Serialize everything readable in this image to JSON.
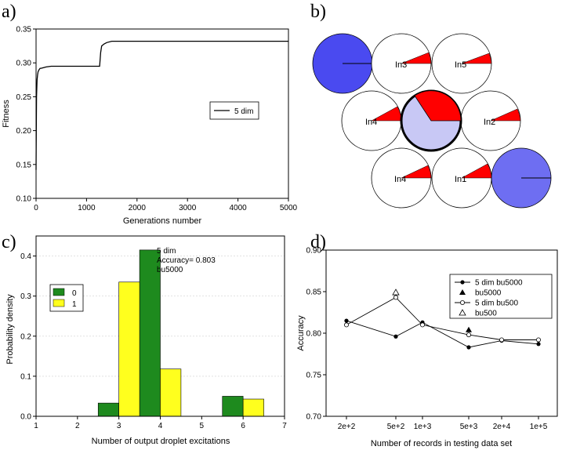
{
  "panel_labels": [
    "a)",
    "b)",
    "c)",
    "d)"
  ],
  "chart_data": [
    {
      "panel": "a",
      "type": "line",
      "xlabel": "Generations number",
      "ylabel": "Fitness",
      "xlim": [
        0,
        5000
      ],
      "ylim": [
        0.1,
        0.35
      ],
      "xticks": [
        0,
        1000,
        2000,
        3000,
        4000,
        5000
      ],
      "yticks": [
        0.1,
        0.15,
        0.2,
        0.25,
        0.3,
        0.35
      ],
      "ytick_labels": [
        "0.10",
        "0.15",
        "0.20",
        "0.25",
        "0.30",
        "0.35"
      ],
      "legend": "5 dim",
      "legend_position": "center-right",
      "series": [
        {
          "name": "5 dim",
          "x": [
            0,
            5,
            10,
            20,
            30,
            40,
            60,
            80,
            100,
            150,
            200,
            300,
            1260,
            1280,
            1300,
            1350,
            1400,
            1500,
            5000
          ],
          "y": [
            0.142,
            0.2,
            0.25,
            0.275,
            0.282,
            0.287,
            0.29,
            0.292,
            0.292,
            0.293,
            0.294,
            0.295,
            0.295,
            0.315,
            0.325,
            0.328,
            0.33,
            0.332,
            0.332
          ]
        }
      ]
    },
    {
      "panel": "c",
      "type": "bar",
      "xlabel": "Number of output droplet excitations",
      "ylabel": "Probability density",
      "xlim": [
        1,
        7
      ],
      "ylim": [
        0,
        0.45
      ],
      "xticks": [
        1,
        2,
        3,
        4,
        5,
        6,
        7
      ],
      "yticks": [
        0.0,
        0.1,
        0.2,
        0.3,
        0.4
      ],
      "ytick_labels": [
        "0.0",
        "0.1",
        "0.2",
        "0.3",
        "0.4"
      ],
      "annotation": [
        "5 dim",
        "Accuracy= 0.803",
        "bu5000"
      ],
      "legend_position": "left",
      "series": [
        {
          "name": "0",
          "color": "#1e8a1e",
          "x": [
            3,
            4,
            6
          ],
          "values": [
            0.033,
            0.415,
            0.05
          ]
        },
        {
          "name": "1",
          "color": "#ffff1e",
          "x": [
            3,
            4,
            6
          ],
          "values": [
            0.335,
            0.118,
            0.043
          ]
        }
      ]
    },
    {
      "panel": "d",
      "type": "line",
      "xlabel": "Number of records in testing data set",
      "ylabel": "Accuracy",
      "categories": [
        "2e+2",
        "5e+2",
        "1e+3",
        "5e+3",
        "2e+4",
        "1e+5"
      ],
      "ylim": [
        0.7,
        0.9
      ],
      "yticks": [
        0.7,
        0.75,
        0.8,
        0.85,
        0.9
      ],
      "ytick_labels": [
        "0.70",
        "0.75",
        "0.80",
        "0.85",
        "0.90"
      ],
      "legend_position": "top-right",
      "series": [
        {
          "name": "5 dim bu5000",
          "marker": "filled-circle",
          "line": true,
          "values": [
            0.815,
            0.796,
            0.813,
            0.783,
            0.791,
            0.787
          ]
        },
        {
          "name": "bu5000",
          "marker": "filled-triangle",
          "line": false,
          "points": [
            {
              "category": "5e+3",
              "value": 0.804
            }
          ]
        },
        {
          "name": "5 dim bu500",
          "marker": "open-circle",
          "line": true,
          "values": [
            0.81,
            0.843,
            0.81,
            0.798,
            0.792,
            0.792
          ]
        },
        {
          "name": "bu500",
          "marker": "open-triangle",
          "line": false,
          "points": [
            {
              "category": "5e+2",
              "value": 0.849
            }
          ]
        }
      ]
    }
  ],
  "diagram_b": {
    "colors": {
      "node": "#ffffff",
      "sector": "#ff0000",
      "center_fill": "#c8c8f5",
      "input_dark": "#4a4af0",
      "input_light": "#6e6ef2"
    },
    "input_labels": [
      "In3",
      "In5",
      "In4",
      "In2",
      "In4",
      "In1"
    ]
  }
}
